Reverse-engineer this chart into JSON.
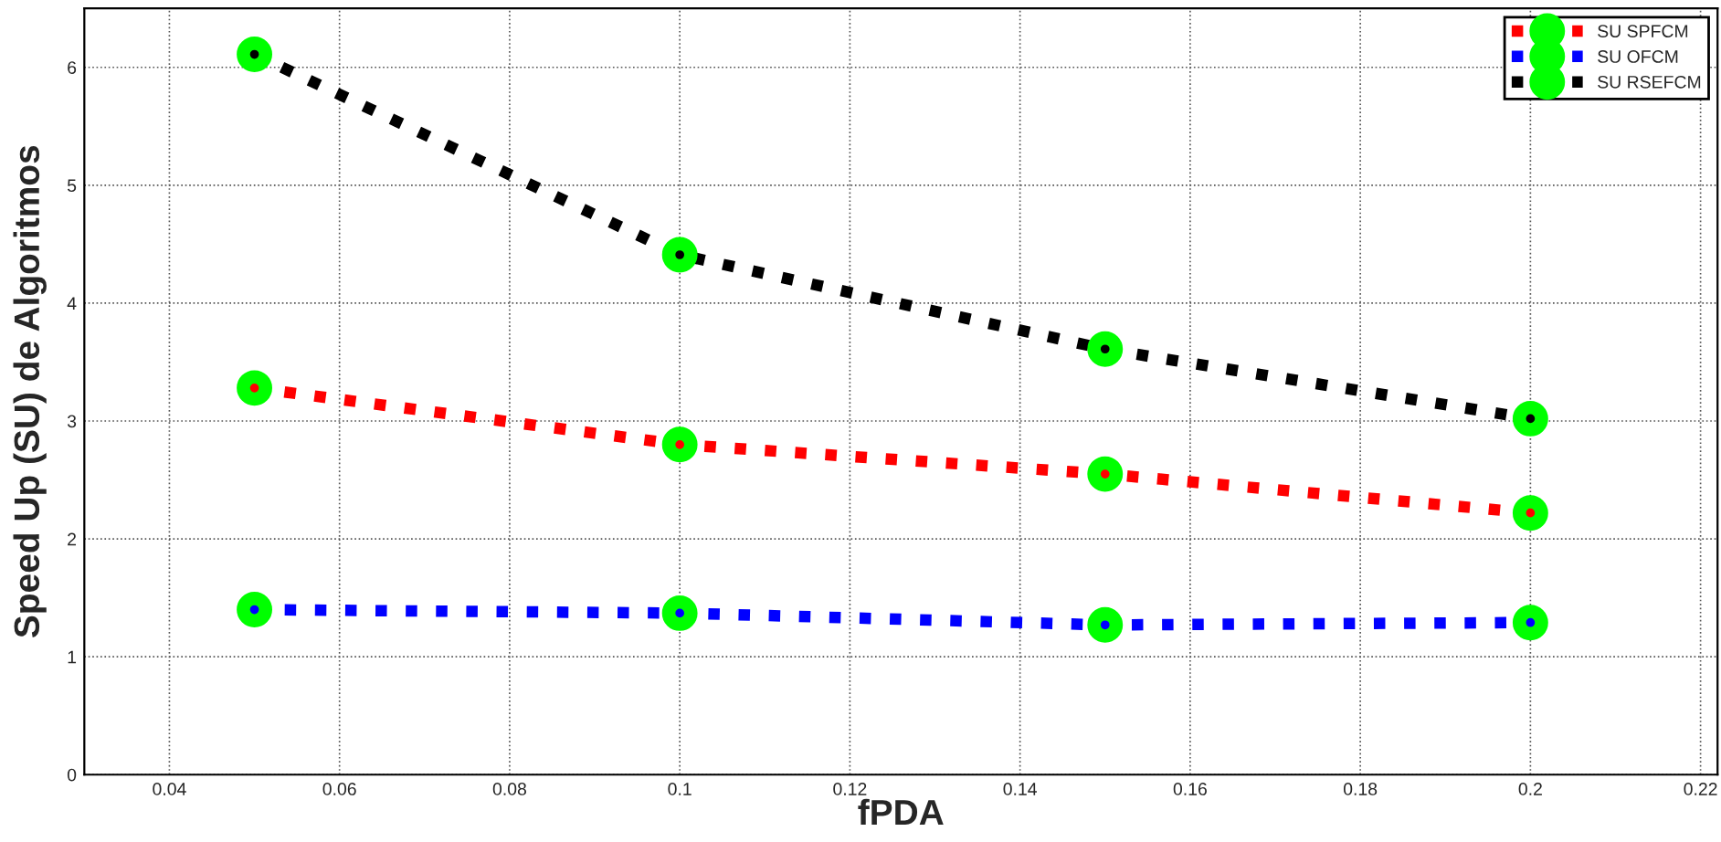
{
  "chart_data": {
    "type": "line",
    "xlabel": "fPDA",
    "ylabel": "Speed Up (SU) de Algoritmos",
    "x": [
      0.05,
      0.1,
      0.15,
      0.2
    ],
    "series": [
      {
        "name": "SU SPFCM",
        "color": "#ff0000",
        "values": [
          3.28,
          2.8,
          2.55,
          2.22
        ]
      },
      {
        "name": "SU OFCM",
        "color": "#0000ff",
        "values": [
          1.4,
          1.37,
          1.27,
          1.29
        ]
      },
      {
        "name": "SU RSEFCM",
        "color": "#000000",
        "values": [
          6.11,
          4.41,
          3.61,
          3.02
        ]
      }
    ],
    "xlim": [
      0.03,
      0.222
    ],
    "xticks": [
      0.04,
      0.06,
      0.08,
      0.1,
      0.12,
      0.14,
      0.16,
      0.18,
      0.2,
      0.22
    ],
    "ylim": [
      0,
      6.5
    ],
    "yticks": [
      0,
      1,
      2,
      3,
      4,
      5,
      6
    ],
    "grid": true,
    "legend": "top right",
    "marker": "circle",
    "line_style": "dotted"
  }
}
